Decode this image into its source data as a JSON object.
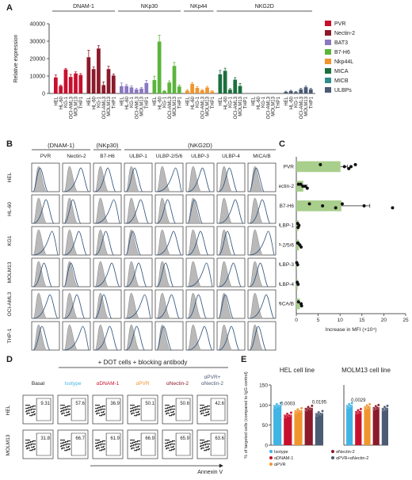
{
  "panels": {
    "a": "A",
    "b": "B",
    "c": "C",
    "d": "D",
    "e": "E"
  },
  "colors": {
    "PVR": "#c8102e",
    "Nectin-2": "#8b1a2b",
    "BAT3": "#8a79c0",
    "B7-H6": "#5bb53b",
    "Nkp44L": "#f0952d",
    "MICA": "#1b6f3e",
    "MICB": "#2f8c8c",
    "ULBPs": "#4b5b73",
    "Isotype": "#41b4e6",
    "aDNAM-1": "#c8102e",
    "aPVR": "#f0952d",
    "aNectin-2": "#8b1a2b",
    "aPVR+aNectin-2": "#4b5b73"
  },
  "chart_data": [
    {
      "type": "bar",
      "id": "A",
      "ylabel": "Relative expression",
      "ylim": [
        0,
        40000
      ],
      "yticks": [
        "0",
        "10000",
        "20000",
        "30000",
        "40000"
      ],
      "group_labels": [
        "DNAM-1",
        "NKp30",
        "NKp44",
        "NKG2D"
      ],
      "cell_lines": [
        "HEL",
        "HL-60",
        "KG-1",
        "OCI-AML3",
        "MOLM13",
        "THP1"
      ],
      "legend": [
        "PVR",
        "Nectin-2",
        "BAT3",
        "B7-H6",
        "Nkp44L",
        "MICA",
        "MICB",
        "ULBPs"
      ],
      "series": [
        {
          "name": "PVR",
          "values": [
            9200,
            4300,
            13800,
            9500,
            11500,
            10600
          ],
          "err": [
            1400,
            500,
            600,
            1400,
            900,
            800
          ]
        },
        {
          "name": "Nectin-2",
          "values": [
            20800,
            14000,
            25800,
            4800,
            14000,
            10300
          ],
          "err": [
            4000,
            1200,
            1600,
            1800,
            1600,
            900
          ]
        },
        {
          "name": "BAT3",
          "values": [
            4200,
            4300,
            3500,
            2300,
            2800,
            6000
          ],
          "err": [
            1800,
            800,
            900,
            600,
            600,
            1500
          ]
        },
        {
          "name": "B7-H6",
          "values": [
            7700,
            29800,
            1300,
            6300,
            15800,
            4000
          ],
          "err": [
            2200,
            3600,
            300,
            900,
            2000,
            800
          ]
        },
        {
          "name": "Nkp44L",
          "values": [
            1600,
            5500,
            3200,
            1800,
            3400,
            1200
          ],
          "err": [
            600,
            800,
            700,
            500,
            700,
            400
          ]
        },
        {
          "name": "MICA",
          "values": [
            11000,
            13000,
            2200,
            7900,
            4300,
            0
          ],
          "err": [
            2200,
            1500,
            600,
            1200,
            1400,
            0
          ]
        },
        {
          "name": "MICB",
          "values": [
            0,
            0,
            0,
            0,
            0,
            0
          ],
          "err": [
            0,
            0,
            0,
            0,
            0,
            0
          ]
        },
        {
          "name": "ULBPs",
          "values": [
            900,
            1400,
            800,
            2400,
            3600,
            2400
          ],
          "err": [
            400,
            400,
            300,
            500,
            600,
            500
          ]
        }
      ]
    },
    {
      "type": "bar",
      "id": "C",
      "orientation": "horizontal",
      "xlabel": "Increase in MFI (×10⁴)",
      "xlim": [
        0,
        25
      ],
      "xticks": [
        "0",
        "5",
        "10",
        "15",
        "20",
        "25"
      ],
      "categories": [
        "PVR",
        "Nectin-2",
        "B7-H6",
        "ULBP-1",
        "ULBP-2/5/6",
        "ULBP-3",
        "ULBP-4",
        "MICA/B"
      ],
      "values": [
        10.1,
        1.6,
        10.3,
        0.5,
        0.6,
        0.2,
        0.3,
        0.8
      ],
      "err": [
        1.6,
        0.8,
        6.5,
        0.2,
        0.3,
        0.1,
        0.1,
        0.4
      ],
      "points": [
        [
          5.5,
          11,
          12,
          13.5,
          12.5
        ],
        [
          1,
          1.5,
          2.5,
          0.5,
          2
        ],
        [
          3,
          6,
          9,
          10.5,
          15.5,
          22
        ],
        [
          0.3,
          0.6,
          0.4
        ],
        [
          0.4,
          0.8,
          1.1,
          0.3
        ],
        [
          0.1,
          0.3
        ],
        [
          0.2,
          0.4
        ],
        [
          0.5,
          1.1,
          1.2
        ]
      ],
      "bar_color": "#a9cf8c"
    },
    {
      "type": "bar",
      "id": "E1",
      "title": "HEL cell line",
      "ylabel": "% of targeted cells (compared to IgG control)",
      "ylim": [
        0,
        150
      ],
      "yticks": [
        "0",
        "50",
        "100",
        "150"
      ],
      "categories": [
        "Isotype",
        "aDNAM-1",
        "aPVR",
        "aNectin-2",
        "aPVR+aNectin-2"
      ],
      "values": [
        100,
        76,
        87,
        93,
        80
      ],
      "pvalues": [
        "",
        "0.0003",
        "",
        "",
        "0.0195"
      ]
    },
    {
      "type": "bar",
      "id": "E2",
      "title": "MOLM13 cell line",
      "ylim": [
        0,
        150
      ],
      "categories": [
        "Isotype",
        "aDNAM-1",
        "aPVR",
        "aNectin-2",
        "aPVR+aNectin-2"
      ],
      "values": [
        100,
        85,
        97,
        95,
        93
      ],
      "pvalues": [
        "",
        "0.0029",
        "",
        "",
        ""
      ]
    }
  ],
  "panelB": {
    "group_headers": [
      "(DNAM-1)",
      "(NKp30)",
      "(NKG2D)"
    ],
    "columns": [
      "PVR",
      "Nectin-2",
      "B7-H6",
      "ULBP-1",
      "ULBP-2/5/6",
      "ULBP-3",
      "ULBP-4",
      "MICA/B"
    ],
    "rows": [
      "HEL",
      "HL-60",
      "KG1",
      "MOLM13",
      "OCI-AML3",
      "THP-1"
    ]
  },
  "panelD": {
    "header": "+ DOT cells + blocking antibody",
    "columns": [
      "Basal",
      "Isotype",
      "αDNAM-1",
      "αPVR",
      "αNectin-2",
      "αPVR+\nαNectin-2"
    ],
    "rows": [
      "HEL",
      "MOLM13"
    ],
    "values": [
      [
        "9.31",
        "57.6",
        "36.9",
        "50.1",
        "50.6",
        "42.6"
      ],
      [
        "31.8",
        "66.7",
        "61.9",
        "66.9",
        "65.9",
        "63.6"
      ]
    ],
    "xlabel": "Annexin V"
  },
  "panelE_legend": [
    {
      "key": "Isotype",
      "label": "Isotype"
    },
    {
      "key": "aNectin-2",
      "label": "αNectin-2"
    },
    {
      "key": "aDNAM-1",
      "label": "αDNAM-1"
    },
    {
      "key": "aPVR+aNectin-2",
      "label": "αPVR+αNectin-2"
    },
    {
      "key": "aPVR",
      "label": "αPVR"
    }
  ]
}
